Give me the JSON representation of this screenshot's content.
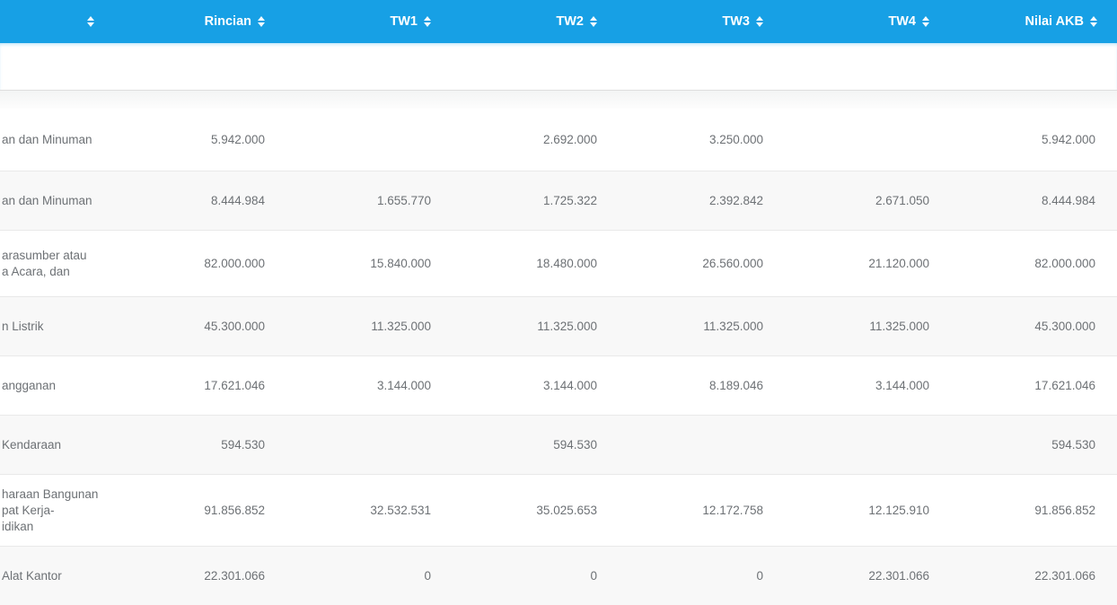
{
  "table": {
    "columns": [
      {
        "label": ""
      },
      {
        "label": "Rincian"
      },
      {
        "label": "TW1"
      },
      {
        "label": "TW2"
      },
      {
        "label": "TW3"
      },
      {
        "label": "TW4"
      },
      {
        "label": "Nilai AKB"
      }
    ],
    "rows": [
      {
        "label_lines": [
          "an dan Minuman"
        ],
        "rincian": "5.942.000",
        "tw1": "",
        "tw2": "2.692.000",
        "tw3": "3.250.000",
        "tw4": "",
        "nilai_akb": "5.942.000"
      },
      {
        "label_lines": [
          "an dan Minuman"
        ],
        "rincian": "8.444.984",
        "tw1": "1.655.770",
        "tw2": "1.725.322",
        "tw3": "2.392.842",
        "tw4": "2.671.050",
        "nilai_akb": "8.444.984"
      },
      {
        "label_lines": [
          "arasumber atau",
          "a Acara, dan"
        ],
        "rincian": "82.000.000",
        "tw1": "15.840.000",
        "tw2": "18.480.000",
        "tw3": "26.560.000",
        "tw4": "21.120.000",
        "nilai_akb": "82.000.000"
      },
      {
        "label_lines": [
          "n Listrik"
        ],
        "rincian": "45.300.000",
        "tw1": "11.325.000",
        "tw2": "11.325.000",
        "tw3": "11.325.000",
        "tw4": "11.325.000",
        "nilai_akb": "45.300.000"
      },
      {
        "label_lines": [
          "angganan"
        ],
        "rincian": "17.621.046",
        "tw1": "3.144.000",
        "tw2": "3.144.000",
        "tw3": "8.189.046",
        "tw4": "3.144.000",
        "nilai_akb": "17.621.046"
      },
      {
        "label_lines": [
          "Kendaraan"
        ],
        "rincian": "594.530",
        "tw1": "",
        "tw2": "594.530",
        "tw3": "",
        "tw4": "",
        "nilai_akb": "594.530"
      },
      {
        "label_lines": [
          "haraan Bangunan",
          "pat Kerja-",
          "idikan"
        ],
        "rincian": "91.856.852",
        "tw1": "32.532.531",
        "tw2": "35.025.653",
        "tw3": "12.172.758",
        "tw4": "12.125.910",
        "nilai_akb": "91.856.852"
      },
      {
        "label_lines": [
          "Alat Kantor"
        ],
        "rincian": "22.301.066",
        "tw1": "0",
        "tw2": "0",
        "tw3": "0",
        "tw4": "22.301.066",
        "nilai_akb": "22.301.066"
      }
    ]
  },
  "colors": {
    "header_bg": "#17a0e5",
    "header_text": "#ffffff",
    "row_stripe": "#f8f8f8",
    "row_border": "#e9e9e9",
    "cell_text": "#6d7175"
  },
  "icons": {
    "sort": "sort-arrows-icon"
  }
}
